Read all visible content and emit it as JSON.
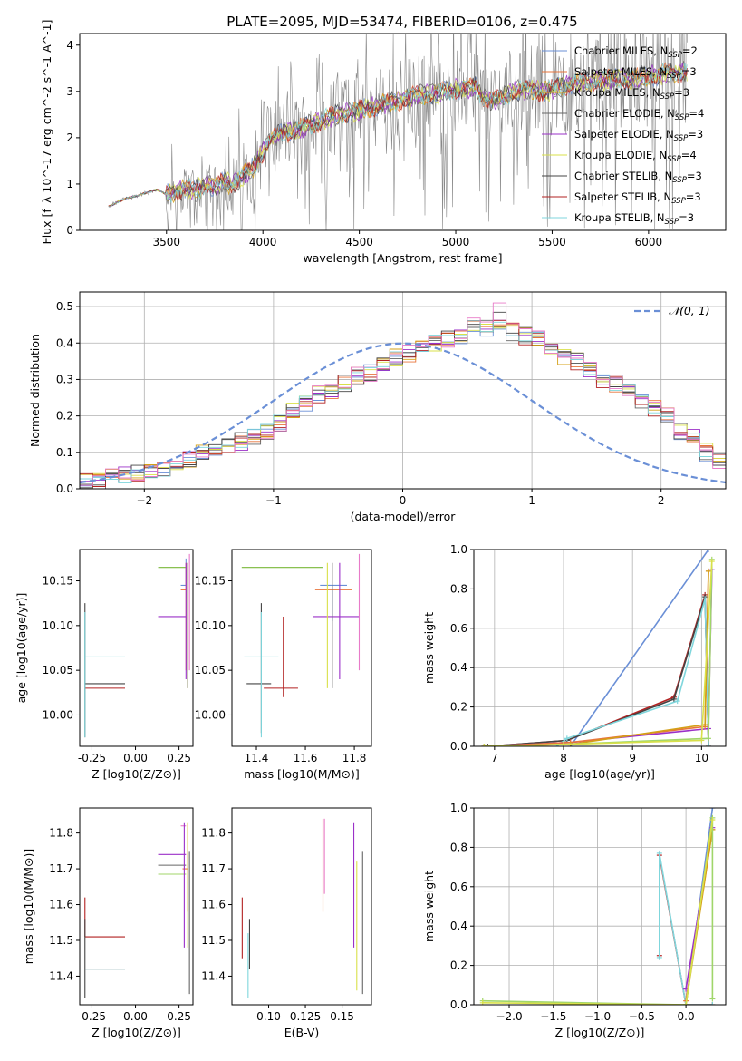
{
  "figure_title": "PLATE=2095, MJD=53474, FIBERID=0106, z=0.475",
  "colors": {
    "chabrier_miles": "#6a8fd6",
    "salpeter_miles": "#e8743b",
    "kroupa_miles": "#d4a017",
    "chabrier_elodie": "#666666",
    "salpeter_elodie": "#9b30c8",
    "kroupa_elodie": "#d9e04a",
    "chabrier_stelib": "#444444",
    "salpeter_stelib": "#b22222",
    "kroupa_stelib": "#7fd6dc",
    "data": "#888888",
    "pink": "#e87bc9",
    "lightgreen": "#a0d66a",
    "green": "#7ab83a"
  },
  "chart_data": [
    {
      "id": "spectrum",
      "type": "line",
      "title": "PLATE=2095, MJD=53474, FIBERID=0106, z=0.475",
      "xlabel": "wavelength [Angstrom, rest frame]",
      "ylabel": "Flux [f_λ 10^-17 erg cm^-2 s^-1 A^-1]",
      "xlim": [
        3050,
        6400
      ],
      "ylim": [
        0,
        4.25
      ],
      "xticks": [
        3500,
        4000,
        4500,
        5000,
        5500,
        6000
      ],
      "yticks": [
        0,
        1,
        2,
        3,
        4
      ],
      "legend_placement": "upper-right",
      "legend": [
        {
          "label": "Chabrier MILES, N",
          "sub": "SSP",
          "tail": "=2",
          "color": "#6a8fd6"
        },
        {
          "label": "Salpeter MILES, N",
          "sub": "SSP",
          "tail": "=3",
          "color": "#e8743b"
        },
        {
          "label": "Kroupa MILES, N",
          "sub": "SSP",
          "tail": "=3",
          "color": "#d4a017"
        },
        {
          "label": "Chabrier ELODIE, N",
          "sub": "SSP",
          "tail": "=4",
          "color": "#666666"
        },
        {
          "label": "Salpeter ELODIE, N",
          "sub": "SSP",
          "tail": "=3",
          "color": "#9b30c8"
        },
        {
          "label": "Kroupa ELODIE, N",
          "sub": "SSP",
          "tail": "=4",
          "color": "#d9e04a"
        },
        {
          "label": "Chabrier STELIB, N",
          "sub": "SSP",
          "tail": "=3",
          "color": "#444444"
        },
        {
          "label": "Salpeter STELIB, N",
          "sub": "SSP",
          "tail": "=3",
          "color": "#b22222"
        },
        {
          "label": "Kroupa STELIB, N",
          "sub": "SSP",
          "tail": "=3",
          "color": "#7fd6dc"
        }
      ],
      "model_continuum": [
        [
          3200,
          0.52
        ],
        [
          3220,
          0.55
        ],
        [
          3250,
          0.62
        ],
        [
          3300,
          0.7
        ],
        [
          3350,
          0.75
        ],
        [
          3400,
          0.82
        ],
        [
          3450,
          0.88
        ],
        [
          3500,
          0.78
        ],
        [
          3550,
          0.85
        ],
        [
          3600,
          0.9
        ],
        [
          3650,
          0.85
        ],
        [
          3700,
          1.0
        ],
        [
          3750,
          0.9
        ],
        [
          3800,
          1.05
        ],
        [
          3850,
          1.0
        ],
        [
          3900,
          1.2
        ],
        [
          3950,
          1.35
        ],
        [
          4000,
          1.7
        ],
        [
          4050,
          2.0
        ],
        [
          4100,
          2.1
        ],
        [
          4150,
          2.15
        ],
        [
          4200,
          2.2
        ],
        [
          4250,
          2.3
        ],
        [
          4300,
          2.35
        ],
        [
          4350,
          2.45
        ],
        [
          4400,
          2.5
        ],
        [
          4450,
          2.55
        ],
        [
          4500,
          2.6
        ],
        [
          4550,
          2.65
        ],
        [
          4600,
          2.7
        ],
        [
          4650,
          2.75
        ],
        [
          4700,
          2.8
        ],
        [
          4750,
          2.85
        ],
        [
          4800,
          2.9
        ],
        [
          4850,
          2.95
        ],
        [
          4900,
          2.95
        ],
        [
          4950,
          3.0
        ],
        [
          5000,
          3.05
        ],
        [
          5050,
          3.05
        ],
        [
          5100,
          3.1
        ],
        [
          5150,
          2.85
        ],
        [
          5200,
          2.8
        ],
        [
          5250,
          2.9
        ],
        [
          5300,
          3.0
        ],
        [
          5350,
          3.05
        ],
        [
          5400,
          3.05
        ],
        [
          5450,
          3.0
        ],
        [
          5500,
          3.05
        ],
        [
          5550,
          3.1
        ],
        [
          5600,
          3.15
        ],
        [
          5650,
          3.2
        ],
        [
          5700,
          3.2
        ],
        [
          5750,
          3.25
        ],
        [
          5800,
          3.25
        ],
        [
          5850,
          3.3
        ],
        [
          5900,
          3.25
        ],
        [
          5950,
          3.3
        ],
        [
          6000,
          3.35
        ],
        [
          6050,
          3.35
        ],
        [
          6100,
          3.4
        ],
        [
          6150,
          3.4
        ],
        [
          6200,
          3.45
        ]
      ]
    },
    {
      "id": "residuals",
      "type": "line",
      "xlabel": "(data-model)/error",
      "ylabel": "Normed distribution",
      "xlim": [
        -2.5,
        2.5
      ],
      "ylim": [
        0,
        0.54
      ],
      "xticks": [
        -2,
        -1,
        0,
        1,
        2
      ],
      "yticks": [
        0.0,
        0.1,
        0.2,
        0.3,
        0.4,
        0.5
      ],
      "legend_placement": "upper-right",
      "gauss_label": "𝒩(0, 1)",
      "bin_edges_start": -2.5,
      "bin_width": 0.1,
      "histogram": [
        0.02,
        0.02,
        0.03,
        0.04,
        0.04,
        0.05,
        0.05,
        0.06,
        0.08,
        0.1,
        0.11,
        0.12,
        0.13,
        0.14,
        0.16,
        0.18,
        0.21,
        0.23,
        0.26,
        0.27,
        0.29,
        0.31,
        0.32,
        0.34,
        0.36,
        0.37,
        0.39,
        0.4,
        0.41,
        0.42,
        0.45,
        0.44,
        0.46,
        0.43,
        0.42,
        0.41,
        0.38,
        0.36,
        0.35,
        0.33,
        0.3,
        0.29,
        0.27,
        0.24,
        0.22,
        0.2,
        0.16,
        0.14,
        0.1,
        0.08
      ]
    },
    {
      "id": "age_vs_Z",
      "type": "scatter",
      "xlabel": "Z [log10(Z/Z⊙)]",
      "ylabel": "age [log10(age/yr)]",
      "xlim": [
        -0.32,
        0.33
      ],
      "ylim": [
        9.965,
        10.185
      ],
      "xticks": [
        -0.25,
        0.0,
        0.25
      ],
      "xticklabels": [
        "-0.25",
        "0.00",
        "0.25"
      ],
      "yticks": [
        10.0,
        10.05,
        10.1,
        10.15
      ],
      "yticklabels": [
        "10.00",
        "10.05",
        "10.10",
        "10.15"
      ]
    },
    {
      "id": "age_vs_mass",
      "type": "scatter",
      "xlabel": "mass [log10(M/M⊙)]",
      "xlim": [
        11.3,
        11.87
      ],
      "ylim": [
        9.965,
        10.185
      ],
      "xticks": [
        11.4,
        11.6,
        11.8
      ],
      "xticklabels": [
        "11.4",
        "11.6",
        "11.8"
      ],
      "yticks": [
        10.0,
        10.05,
        10.1,
        10.15
      ],
      "yticklabels": [
        "10.00",
        "10.05",
        "10.10",
        "10.15"
      ]
    },
    {
      "id": "massweight_vs_age",
      "type": "line",
      "xlabel": "age [log10(age/yr)]",
      "ylabel": "mass weight",
      "xlim": [
        6.7,
        10.35
      ],
      "ylim": [
        0,
        1.0
      ],
      "xticks": [
        7,
        8,
        9,
        10
      ],
      "yticks": [
        0.0,
        0.2,
        0.4,
        0.6,
        0.8,
        1.0
      ],
      "series": [
        {
          "color": "#6a8fd6",
          "x": [
            8.1,
            10.1
          ],
          "y": [
            0.0,
            1.0
          ]
        },
        {
          "color": "#b22222",
          "x": [
            6.9,
            8.05,
            9.6,
            10.05,
            10.1
          ],
          "y": [
            0.0,
            0.03,
            0.25,
            0.77,
            0.0
          ]
        },
        {
          "color": "#444444",
          "x": [
            6.9,
            8.05,
            9.6,
            10.05,
            10.1
          ],
          "y": [
            0.0,
            0.03,
            0.24,
            0.76,
            0.0
          ]
        },
        {
          "color": "#7fd6dc",
          "x": [
            7.9,
            8.05,
            9.65,
            10.05,
            10.1
          ],
          "y": [
            0.0,
            0.04,
            0.23,
            0.75,
            0.0
          ]
        },
        {
          "color": "#9b30c8",
          "x": [
            6.85,
            8.1,
            10.1,
            10.15
          ],
          "y": [
            0.0,
            0.02,
            0.09,
            0.9
          ]
        },
        {
          "color": "#e8743b",
          "x": [
            6.85,
            8.1,
            10.05,
            10.1
          ],
          "y": [
            0.0,
            0.02,
            0.1,
            0.89
          ]
        },
        {
          "color": "#d4a017",
          "x": [
            6.85,
            8.1,
            10.05,
            10.1
          ],
          "y": [
            0.0,
            0.01,
            0.11,
            0.89
          ]
        },
        {
          "color": "#a0d66a",
          "x": [
            6.85,
            8.0,
            10.1,
            10.15
          ],
          "y": [
            0.0,
            0.01,
            0.04,
            0.95
          ]
        },
        {
          "color": "#d9e04a",
          "x": [
            6.85,
            8.0,
            10.0,
            10.15
          ],
          "y": [
            0.0,
            0.01,
            0.03,
            0.94
          ]
        }
      ]
    },
    {
      "id": "mass_vs_Z",
      "type": "scatter",
      "xlabel": "Z [log10(Z/Z⊙)]",
      "ylabel": "mass [log10(M/M⊙)]",
      "xlim": [
        -0.32,
        0.33
      ],
      "ylim": [
        11.32,
        11.87
      ],
      "xticks": [
        -0.25,
        0.0,
        0.25
      ],
      "xticklabels": [
        "-0.25",
        "0.00",
        "0.25"
      ],
      "yticks": [
        11.4,
        11.5,
        11.6,
        11.7,
        11.8
      ],
      "yticklabels": [
        "11.4",
        "11.5",
        "11.6",
        "11.7",
        "11.8"
      ]
    },
    {
      "id": "mass_vs_ebv",
      "type": "scatter",
      "xlabel": "E(B-V)",
      "xlim": [
        0.075,
        0.17
      ],
      "ylim": [
        11.32,
        11.87
      ],
      "xticks": [
        0.1,
        0.125,
        0.15
      ],
      "xticklabels": [
        "0.10",
        "0.125",
        "0.15"
      ],
      "yticks": [
        11.4,
        11.5,
        11.6,
        11.7,
        11.8
      ],
      "yticklabels": [
        "11.4",
        "11.5",
        "11.6",
        "11.7",
        "11.8"
      ]
    },
    {
      "id": "massweight_vs_Z",
      "type": "line",
      "xlabel": "Z [log10(Z/Z⊙)]",
      "ylabel": "mass weight",
      "xlim": [
        -2.4,
        0.45
      ],
      "ylim": [
        0,
        1.0
      ],
      "xticks": [
        -2.0,
        -1.5,
        -1.0,
        -0.5,
        0.0
      ],
      "xticklabels": [
        "−2.0",
        "−1.5",
        "−1.0",
        "−0.5",
        "0.0"
      ],
      "yticks": [
        0.0,
        0.2,
        0.4,
        0.6,
        0.8,
        1.0
      ],
      "series": [
        {
          "color": "#6a8fd6",
          "x": [
            0.0,
            0.3
          ],
          "y": [
            0.0,
            1.0
          ]
        },
        {
          "color": "#b22222",
          "x": [
            -0.3,
            -0.3,
            0.0,
            0.3
          ],
          "y": [
            0.25,
            0.76,
            0.0,
            0.0
          ]
        },
        {
          "color": "#7fd6dc",
          "x": [
            -0.3,
            -0.3,
            0.0,
            0.3
          ],
          "y": [
            0.24,
            0.77,
            0.0,
            0.0
          ]
        },
        {
          "color": "#9b30c8",
          "x": [
            0.0,
            0.3
          ],
          "y": [
            0.08,
            0.9
          ]
        },
        {
          "color": "#e8743b",
          "x": [
            0.0,
            0.3
          ],
          "y": [
            0.02,
            0.89
          ]
        },
        {
          "color": "#d4a017",
          "x": [
            0.0,
            0.3
          ],
          "y": [
            0.0,
            0.89
          ]
        },
        {
          "color": "#a0d66a",
          "x": [
            -2.3,
            0.0,
            0.3,
            0.3
          ],
          "y": [
            0.02,
            0.0,
            0.95,
            0.03
          ]
        },
        {
          "color": "#d9e04a",
          "x": [
            -2.3,
            0.0,
            0.3
          ],
          "y": [
            0.01,
            0.0,
            0.94
          ]
        }
      ]
    }
  ]
}
